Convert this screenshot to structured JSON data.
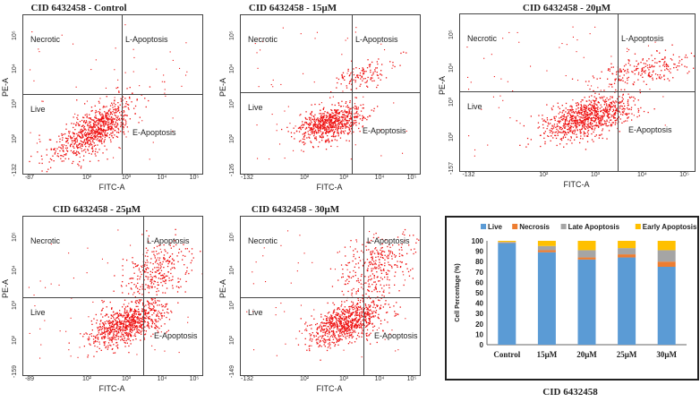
{
  "figure_caption": "CID 6432458",
  "colors": {
    "dots": "#ee1111",
    "live": "#5b9bd5",
    "necrosis": "#ed7d31",
    "late_apoptosis": "#a5a5a5",
    "early_apoptosis": "#ffc000"
  },
  "flow_panels": [
    {
      "title": "CID 6432458 - Control",
      "xlabel": "FITC-A",
      "ylabel": "PE-A",
      "xticks": [
        "-87",
        "10²",
        "10³",
        "10⁴",
        "10⁵"
      ],
      "yticks": [
        "-132",
        "10²",
        "10³",
        "10⁴",
        "10⁵"
      ],
      "quadrants": {
        "necrotic": "Necrotic",
        "late": "L-Apoptosis",
        "live": "Live",
        "early": "E-Apoptosis"
      }
    },
    {
      "title": "CID 6432458 - 15μM",
      "xlabel": "FITC-A",
      "ylabel": "PE-A",
      "xticks": [
        "-132",
        "10²",
        "10³",
        "10⁴",
        "10⁵"
      ],
      "yticks": [
        "-126",
        "10²",
        "10³",
        "10⁴",
        "10⁵"
      ],
      "quadrants": {
        "necrotic": "Necrotic",
        "late": "L-Apoptosis",
        "live": "Live",
        "early": "E-Apoptosis"
      }
    },
    {
      "title": "CID 6432458 - 20μM",
      "xlabel": "FITC-A",
      "ylabel": "PE-A",
      "xticks": [
        "-132",
        "10²",
        "10³",
        "10⁴",
        "10⁵"
      ],
      "yticks": [
        "-157",
        "10²",
        "10³",
        "10⁴",
        "10⁵"
      ],
      "quadrants": {
        "necrotic": "Necrotic",
        "late": "L-Apoptosis",
        "live": "Live",
        "early": "E-Apoptosis"
      }
    },
    {
      "title": "CID 6432458 - 25μM",
      "xlabel": "FITC-A",
      "ylabel": "PE-A",
      "xticks": [
        "-89",
        "10²",
        "10³",
        "10⁴",
        "10⁵"
      ],
      "yticks": [
        "-159",
        "10²",
        "10³",
        "10⁴",
        "10⁵"
      ],
      "quadrants": {
        "necrotic": "Necrotic",
        "late": "L-Apoptosis",
        "live": "Live",
        "early": "E-Apoptosis"
      }
    },
    {
      "title": "CID 6432458 - 30μM",
      "xlabel": "FITC-A",
      "ylabel": "PE-A",
      "xticks": [
        "-132",
        "10²",
        "10³",
        "10⁴",
        "10⁵"
      ],
      "yticks": [
        "-149",
        "10²",
        "10³",
        "10⁴",
        "10⁵"
      ],
      "quadrants": {
        "necrotic": "Necrotic",
        "late": "L-Apoptosis",
        "live": "Live",
        "early": "E-Apoptosis"
      }
    }
  ],
  "chart_data": {
    "type": "bar",
    "stacked": true,
    "categories": [
      "Control",
      "15μM",
      "20μM",
      "25μM",
      "30μM"
    ],
    "ylabel": "Cell Percentage (%)",
    "ylim": [
      0,
      100
    ],
    "yticks": [
      0,
      10,
      20,
      30,
      40,
      50,
      60,
      70,
      80,
      90,
      100
    ],
    "legend_position": "top",
    "series": [
      {
        "name": "Live",
        "values": [
          98,
          89,
          82,
          84,
          75
        ]
      },
      {
        "name": "Necrosis",
        "values": [
          0.5,
          2,
          2,
          3,
          5
        ]
      },
      {
        "name": "Late Apoptosis",
        "values": [
          0.5,
          4,
          7,
          6,
          11
        ]
      },
      {
        "name": "Early Apoptosis",
        "values": [
          1,
          5,
          9,
          7,
          9
        ]
      }
    ]
  }
}
